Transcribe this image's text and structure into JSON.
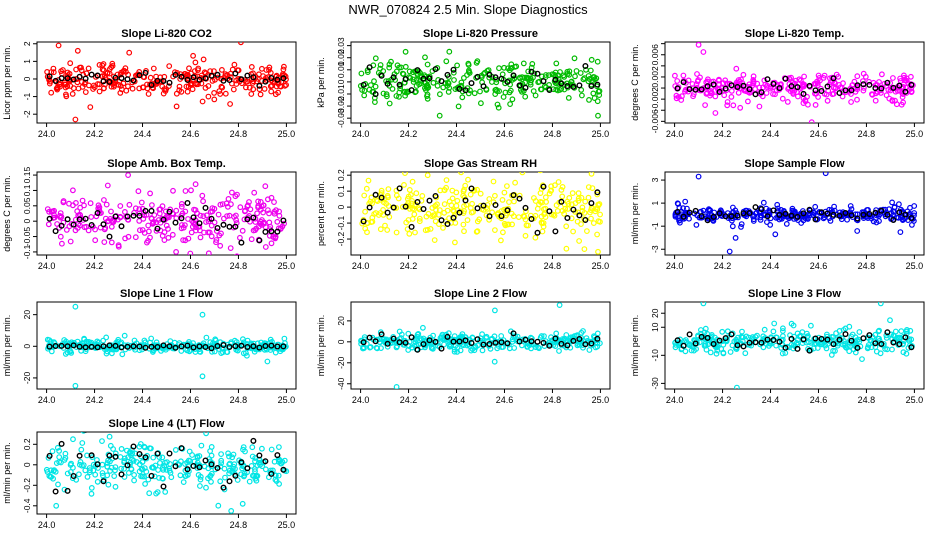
{
  "figure_title": "NWR_070824  2.5 Min. Slope Diagnostics",
  "chart_data": [
    {
      "type": "scatter",
      "title": "Slope Li-820 CO2",
      "ylabel": "Licor ppm per min.",
      "xlim": [
        24.0,
        25.0
      ],
      "xticks": [
        24.0,
        24.2,
        24.4,
        24.6,
        24.8,
        25.0
      ],
      "ylim": [
        -2.5,
        2.1
      ],
      "yticks": [
        -2,
        -1,
        0,
        1,
        2
      ],
      "color": "#ff0000",
      "spread": 0.45,
      "outliers": [
        [
          24.05,
          1.9
        ],
        [
          24.12,
          -2.3
        ],
        [
          24.13,
          1.6
        ]
      ],
      "black_amp": 0.15
    },
    {
      "type": "scatter",
      "title": "Slope Li-820 Pressure",
      "ylabel": "kPa per min.",
      "xlim": [
        24.0,
        25.0
      ],
      "xticks": [
        24.0,
        24.2,
        24.4,
        24.6,
        24.8,
        25.0
      ],
      "ylim": [
        -0.034,
        0.033
      ],
      "yticks": [
        -0.03,
        -0.02,
        -0.01,
        0.0,
        0.01,
        0.02,
        0.03
      ],
      "color": "#00bb00",
      "spread": 0.008,
      "outliers": [
        [
          24.37,
          0.025
        ],
        [
          24.33,
          -0.028
        ],
        [
          24.99,
          -0.028
        ]
      ],
      "black_amp": 0.006
    },
    {
      "type": "scatter",
      "title": "Slope Li-820 Temp.",
      "ylabel": "degrees C per min.",
      "xlim": [
        24.0,
        25.0
      ],
      "xticks": [
        24.0,
        24.2,
        24.4,
        24.6,
        24.8,
        25.0
      ],
      "ylim": [
        -0.0063,
        0.0083
      ],
      "yticks": [
        -0.006,
        -0.004,
        -0.002,
        0.0,
        0.002,
        0.004,
        0.006,
        0.008
      ],
      "yticklabels": [
        "-0.006",
        "-0.002",
        "0.002",
        "0.006"
      ],
      "color": "#ff00ff",
      "spread": 0.0012,
      "outliers": [
        [
          24.1,
          0.0078
        ],
        [
          24.12,
          0.0065
        ],
        [
          24.17,
          -0.0045
        ]
      ],
      "black_amp": 0.0008
    },
    {
      "type": "scatter",
      "title": "Slope Amb. Box Temp.",
      "ylabel": "degrees C per min.",
      "xlim": [
        24.0,
        25.0
      ],
      "xticks": [
        24.0,
        24.2,
        24.4,
        24.6,
        24.8,
        25.0
      ],
      "ylim": [
        -0.11,
        0.16
      ],
      "yticks": [
        -0.1,
        -0.05,
        0.0,
        0.05,
        0.1,
        0.15
      ],
      "color": "#ee00ee",
      "spread": 0.04,
      "outliers": [
        [
          24.34,
          0.15
        ],
        [
          24.54,
          -0.1
        ]
      ],
      "black_amp": 0.03
    },
    {
      "type": "scatter",
      "title": "Slope Gas Stream RH",
      "ylabel": "percent per min.",
      "xlim": [
        24.0,
        25.0
      ],
      "xticks": [
        24.0,
        24.2,
        24.4,
        24.6,
        24.8,
        25.0
      ],
      "ylim": [
        -0.3,
        0.22
      ],
      "yticks": [
        -0.2,
        -0.1,
        0.0,
        0.1,
        0.2
      ],
      "color": "#ffff00",
      "spread": 0.08,
      "outliers": [
        [
          24.28,
          0.2
        ],
        [
          24.99,
          -0.28
        ]
      ],
      "black_amp": 0.08
    },
    {
      "type": "scatter",
      "title": "Slope Sample Flow",
      "ylabel": "ml/min per min.",
      "xlim": [
        24.0,
        25.0
      ],
      "xticks": [
        24.0,
        24.2,
        24.4,
        24.6,
        24.8,
        25.0
      ],
      "ylim": [
        -3.5,
        3.7
      ],
      "yticks": [
        -3,
        -1,
        1,
        3
      ],
      "color": "#0000ee",
      "spread": 0.35,
      "outliers": [
        [
          24.1,
          3.3
        ],
        [
          24.23,
          -3.2
        ],
        [
          24.63,
          3.6
        ],
        [
          24.42,
          -1.7
        ]
      ],
      "black_amp": 0.25
    },
    {
      "type": "scatter",
      "title": "Slope Line 1 Flow",
      "ylabel": "ml/min per min.",
      "xlim": [
        24.0,
        25.0
      ],
      "xticks": [
        24.0,
        24.2,
        24.4,
        24.6,
        24.8,
        25.0
      ],
      "ylim": [
        -27,
        28
      ],
      "yticks": [
        -20,
        0,
        20
      ],
      "color": "#00e5e5",
      "spread": 2.0,
      "outliers": [
        [
          24.12,
          25
        ],
        [
          24.12,
          -25
        ],
        [
          24.65,
          20
        ],
        [
          24.65,
          -19
        ]
      ],
      "black_amp": 0.5
    },
    {
      "type": "scatter",
      "title": "Slope Line 2 Flow",
      "ylabel": "ml/min per min.",
      "xlim": [
        24.0,
        25.0
      ],
      "xticks": [
        24.0,
        24.2,
        24.4,
        24.6,
        24.8,
        25.0
      ],
      "ylim": [
        -45,
        38
      ],
      "yticks": [
        -40,
        -20,
        0,
        20
      ],
      "color": "#00e5e5",
      "spread": 4,
      "outliers": [
        [
          24.15,
          -43
        ],
        [
          24.83,
          35
        ],
        [
          24.56,
          30
        ]
      ],
      "black_amp": 3
    },
    {
      "type": "scatter",
      "title": "Slope Line 3 Flow",
      "ylabel": "ml/min per min.",
      "xlim": [
        24.0,
        25.0
      ],
      "xticks": [
        24.0,
        24.2,
        24.4,
        24.6,
        24.8,
        25.0
      ],
      "ylim": [
        -34,
        28
      ],
      "yticks": [
        -30,
        -10,
        10,
        20
      ],
      "yticklabels": [
        "-30",
        "-10",
        "10",
        "20"
      ],
      "color": "#00e5e5",
      "spread": 4,
      "outliers": [
        [
          24.12,
          27
        ],
        [
          24.26,
          -33
        ],
        [
          24.86,
          27
        ]
      ],
      "black_amp": 3
    },
    {
      "type": "scatter",
      "title": "Slope Line 4 (LT) Flow",
      "ylabel": "ml/min per min.",
      "xlim": [
        24.0,
        25.0
      ],
      "xticks": [
        24.0,
        24.2,
        24.4,
        24.6,
        24.8,
        25.0
      ],
      "ylim": [
        -0.48,
        0.32
      ],
      "yticks": [
        -0.4,
        -0.2,
        0.0,
        0.2
      ],
      "color": "#00e5e5",
      "spread": 0.11,
      "outliers": [
        [
          24.04,
          -0.4
        ],
        [
          24.77,
          -0.45
        ],
        [
          24.11,
          0.25
        ]
      ],
      "black_amp": 0.15
    }
  ]
}
